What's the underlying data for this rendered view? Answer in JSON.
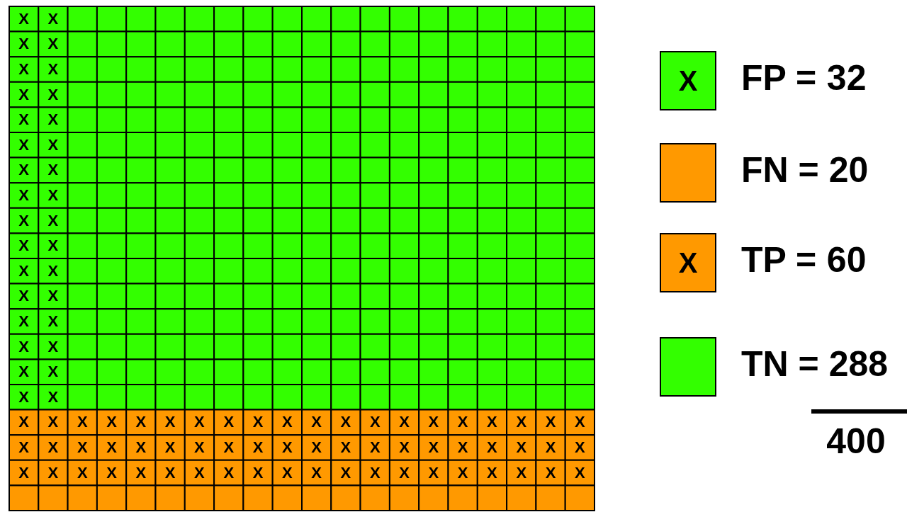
{
  "chart_data": {
    "type": "other",
    "categories": [
      "FP =",
      "FN =",
      "TP =",
      "TN ="
    ],
    "values": [
      32,
      20,
      60,
      288
    ],
    "data_labels": true,
    "colors": [
      "#33ff00",
      "#ff9900",
      "#ff9900",
      "#33ff00"
    ],
    "cell_labels": [
      "X",
      null,
      "X",
      null
    ],
    "totals": [
      "400"
    ]
  }
}
